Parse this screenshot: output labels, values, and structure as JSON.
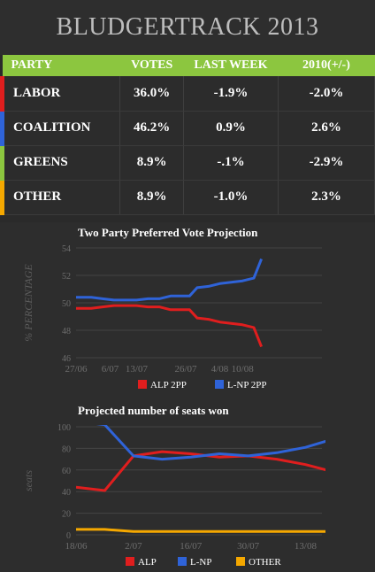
{
  "header": {
    "title": "BLUDGERTRACK 2013"
  },
  "table": {
    "headers": [
      "PARTY",
      "VOTES",
      "LAST WEEK",
      "2010(+/-)"
    ],
    "rows": [
      {
        "party": "LABOR",
        "votes": "36.0%",
        "last_week": "-1.9%",
        "change_2010": "-2.0%",
        "color": "#e01e1e"
      },
      {
        "party": "COALITION",
        "votes": "46.2%",
        "last_week": "0.9%",
        "change_2010": "2.6%",
        "color": "#2f63d8"
      },
      {
        "party": "GREENS",
        "votes": "8.9%",
        "last_week": "-.1%",
        "change_2010": "-2.9%",
        "color": "#8cc63f"
      },
      {
        "party": "OTHER",
        "votes": "8.9%",
        "last_week": "-1.0%",
        "change_2010": "2.3%",
        "color": "#f5a800"
      }
    ]
  },
  "chart_data": [
    {
      "type": "line",
      "title": "Two Party Preferred Vote Projection",
      "ylabel": "% PERCENTAGE",
      "xlabel": "",
      "ylim": [
        46,
        54
      ],
      "yticks": [
        46,
        48,
        50,
        52,
        54
      ],
      "xlim": [
        0,
        65
      ],
      "xticks": [
        {
          "label": "27/06",
          "x": 0
        },
        {
          "label": "6/07",
          "x": 9
        },
        {
          "label": "13/07",
          "x": 16
        },
        {
          "label": "26/07",
          "x": 29
        },
        {
          "label": "4/08",
          "x": 38
        },
        {
          "label": "10/08",
          "x": 44
        }
      ],
      "grid": true,
      "legend": "bottom",
      "series": [
        {
          "name": "ALP 2PP",
          "color": "#e01e1e",
          "x": [
            0,
            4,
            7,
            10,
            13,
            16,
            19,
            22,
            25,
            28,
            30,
            32,
            35,
            38,
            41,
            44,
            47,
            49
          ],
          "values": [
            49.6,
            49.6,
            49.7,
            49.8,
            49.8,
            49.8,
            49.7,
            49.7,
            49.5,
            49.5,
            49.5,
            48.9,
            48.8,
            48.6,
            48.5,
            48.4,
            48.2,
            46.8
          ]
        },
        {
          "name": "L-NP 2PP",
          "color": "#2f63d8",
          "x": [
            0,
            4,
            7,
            10,
            13,
            16,
            19,
            22,
            25,
            28,
            30,
            32,
            35,
            38,
            41,
            44,
            47,
            49
          ],
          "values": [
            50.4,
            50.4,
            50.3,
            50.2,
            50.2,
            50.2,
            50.3,
            50.3,
            50.5,
            50.5,
            50.5,
            51.1,
            51.2,
            51.4,
            51.5,
            51.6,
            51.8,
            53.2
          ]
        }
      ]
    },
    {
      "type": "line",
      "title": "Projected number of seats won",
      "ylabel": "seats",
      "xlabel": "",
      "ylim": [
        0,
        100
      ],
      "yticks": [
        0,
        20,
        40,
        60,
        80,
        100
      ],
      "xlim": [
        0,
        60
      ],
      "xticks": [
        {
          "label": "18/06",
          "x": 0
        },
        {
          "label": "2/07",
          "x": 14
        },
        {
          "label": "16/07",
          "x": 28
        },
        {
          "label": "30/07",
          "x": 42
        },
        {
          "label": "13/08",
          "x": 56
        }
      ],
      "grid": true,
      "legend": "bottom",
      "series": [
        {
          "name": "ALP",
          "color": "#e01e1e",
          "x": [
            0,
            7,
            14,
            21,
            28,
            35,
            42,
            49,
            56,
            63
          ],
          "values": [
            44,
            41,
            73,
            77,
            75,
            72,
            73,
            70,
            65,
            58
          ]
        },
        {
          "name": "L-NP",
          "color": "#2f63d8",
          "x": [
            0,
            7,
            14,
            21,
            28,
            35,
            42,
            49,
            56,
            63
          ],
          "values": [
            105,
            102,
            73,
            70,
            72,
            75,
            73,
            76,
            81,
            89
          ]
        },
        {
          "name": "OTHER",
          "color": "#f5a800",
          "x": [
            0,
            7,
            14,
            21,
            28,
            35,
            42,
            49,
            56,
            63
          ],
          "values": [
            5,
            5,
            3,
            3,
            3,
            3,
            3,
            3,
            3,
            3
          ]
        }
      ]
    }
  ]
}
